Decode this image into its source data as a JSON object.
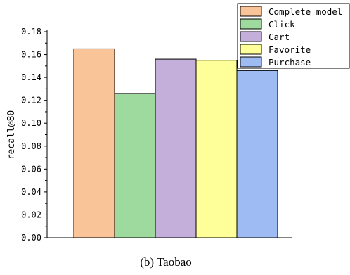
{
  "chart_data": {
    "type": "bar",
    "categories": [
      "Complete model",
      "Click",
      "Cart",
      "Favorite",
      "Purchase"
    ],
    "values": [
      0.165,
      0.126,
      0.156,
      0.155,
      0.146
    ],
    "colors": [
      "#F9C598",
      "#9ED99E",
      "#C3AFDA",
      "#FFFF99",
      "#9FBBF3"
    ],
    "ylabel": "recall@80",
    "xlabel": "",
    "ylim": [
      0,
      0.18
    ],
    "yticks": [
      "0.00",
      "0.02",
      "0.04",
      "0.06",
      "0.08",
      "0.10",
      "0.12",
      "0.14",
      "0.16",
      "0.18"
    ],
    "legend_position": "top-right",
    "grid": false
  },
  "caption": "(b) Taobao"
}
